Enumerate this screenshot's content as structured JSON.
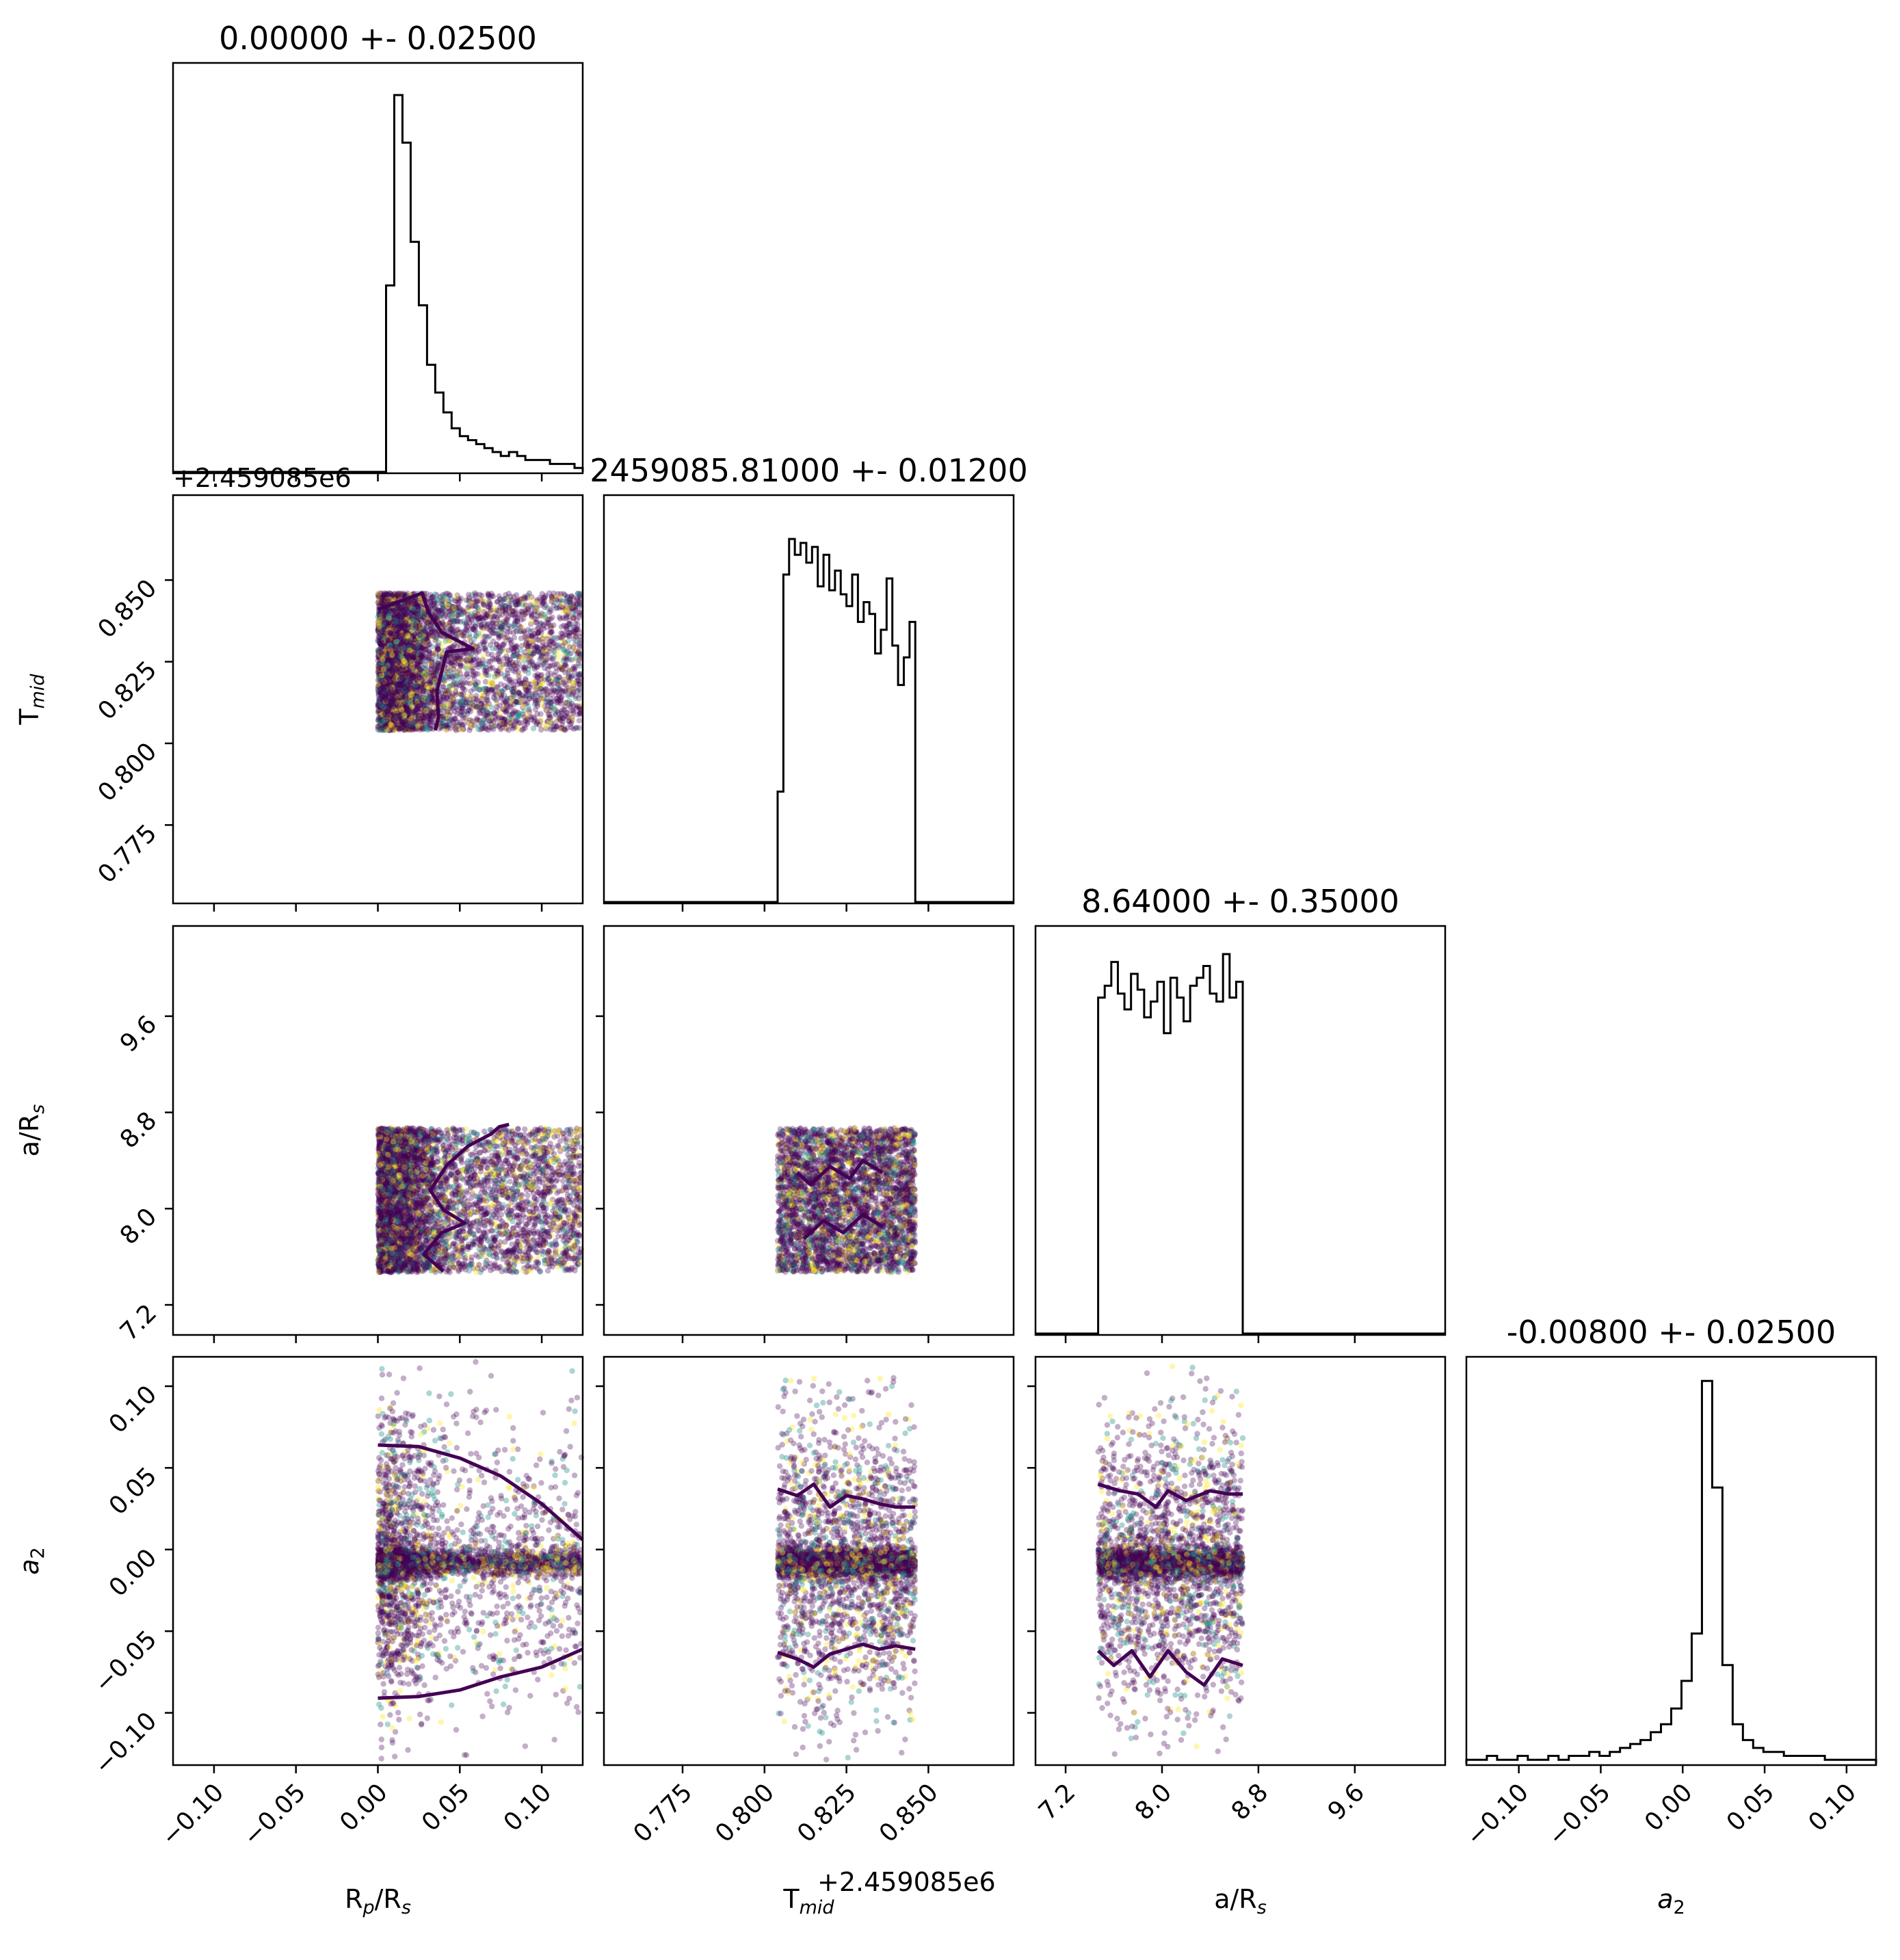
{
  "chart_data": {
    "type": "corner",
    "colors": {
      "frame": "#000000",
      "scatter_low": "#440154",
      "scatter_mid": "#21918c",
      "scatter_high": "#fde725",
      "contour": "#440154",
      "hist": "#000000"
    },
    "parameters": [
      {
        "key": "rp",
        "label_main": "R",
        "label_sub1": "p",
        "label_mid": "/R",
        "label_sub2": "s",
        "title": "0.00000 +- 0.02500",
        "range": [
          -0.125,
          0.125
        ],
        "ticks": [
          "−0.10",
          "−0.05",
          "0.00",
          "0.05",
          "0.10"
        ],
        "tick_values": [
          -0.1,
          -0.05,
          0.0,
          0.05,
          0.1
        ],
        "sample_range": [
          0.0,
          0.125
        ]
      },
      {
        "key": "tmid",
        "label_main": "T",
        "label_sub1": "mid",
        "label_mid": "",
        "label_sub2": "",
        "title": "2459085.81000 +- 0.01200",
        "range": [
          0.751,
          0.876
        ],
        "ticks": [
          "0.775",
          "0.800",
          "0.825",
          "0.850"
        ],
        "tick_values": [
          0.775,
          0.8,
          0.825,
          0.85
        ],
        "offset_label": "+2.459085e6",
        "sample_range": [
          0.804,
          0.846
        ]
      },
      {
        "key": "ars",
        "label_main": "a/R",
        "label_sub1": "",
        "label_mid": "",
        "label_sub2": "s",
        "title": "8.64000 +- 0.35000",
        "range": [
          6.95,
          10.35
        ],
        "ticks": [
          "7.2",
          "8.0",
          "8.8",
          "9.6"
        ],
        "tick_values": [
          7.2,
          8.0,
          8.8,
          9.6
        ],
        "sample_range": [
          7.47,
          8.67
        ]
      },
      {
        "key": "a2",
        "label_main": "a",
        "label_sub1": "",
        "label_mid": "",
        "label_sub2": "2",
        "title": "-0.00800 +- 0.02500",
        "range": [
          -0.132,
          0.118
        ],
        "ticks": [
          "−0.10",
          "−0.05",
          "0.00",
          "0.05",
          "0.10"
        ],
        "tick_values": [
          -0.1,
          -0.05,
          0.0,
          0.05,
          0.1
        ]
      }
    ],
    "histograms": {
      "rp": [
        0.0,
        0.47,
        0.95,
        0.83,
        0.58,
        0.42,
        0.27,
        0.2,
        0.15,
        0.11,
        0.09,
        0.08,
        0.07,
        0.06,
        0.05,
        0.04,
        0.05,
        0.04,
        0.03,
        0.03,
        0.03,
        0.02,
        0.02,
        0.02,
        0.01
      ],
      "tmid": [
        0.28,
        0.83,
        0.92,
        0.88,
        0.91,
        0.86,
        0.9,
        0.8,
        0.88,
        0.79,
        0.84,
        0.78,
        0.75,
        0.83,
        0.71,
        0.76,
        0.73,
        0.63,
        0.69,
        0.82,
        0.65,
        0.55,
        0.62,
        0.71
      ],
      "ars": [
        0.85,
        0.88,
        0.94,
        0.86,
        0.82,
        0.91,
        0.87,
        0.8,
        0.84,
        0.89,
        0.76,
        0.9,
        0.85,
        0.79,
        0.88,
        0.9,
        0.93,
        0.86,
        0.84,
        0.96,
        0.85,
        0.89
      ],
      "a2": [
        0.01,
        0.01,
        0.02,
        0.01,
        0.01,
        0.02,
        0.01,
        0.01,
        0.02,
        0.01,
        0.02,
        0.02,
        0.03,
        0.02,
        0.03,
        0.04,
        0.05,
        0.06,
        0.08,
        0.1,
        0.14,
        0.21,
        0.33,
        0.97,
        0.7,
        0.25,
        0.1,
        0.06,
        0.04,
        0.03,
        0.03,
        0.02,
        0.02,
        0.02,
        0.02,
        0.01,
        0.01,
        0.01,
        0.01,
        0.01
      ],
      "a2_range": [
        -0.132,
        0.118
      ]
    },
    "contours": {
      "tmid_rp": [
        [
          0.0,
          0.841
        ],
        [
          0.027,
          0.846
        ],
        [
          0.031,
          0.84
        ],
        [
          0.039,
          0.834
        ],
        [
          0.058,
          0.829
        ],
        [
          0.042,
          0.828
        ],
        [
          0.039,
          0.822
        ],
        [
          0.036,
          0.816
        ],
        [
          0.037,
          0.808
        ],
        [
          0.035,
          0.804
        ]
      ],
      "ars_rp": [
        [
          0.04,
          7.48
        ],
        [
          0.028,
          7.62
        ],
        [
          0.039,
          7.8
        ],
        [
          0.053,
          7.88
        ],
        [
          0.04,
          7.99
        ],
        [
          0.032,
          8.15
        ],
        [
          0.042,
          8.36
        ],
        [
          0.055,
          8.52
        ],
        [
          0.069,
          8.62
        ],
        [
          0.074,
          8.68
        ],
        [
          0.08,
          8.7
        ]
      ],
      "a2_rp_upper": [
        [
          0.0,
          0.064
        ],
        [
          0.025,
          0.063
        ],
        [
          0.05,
          0.056
        ],
        [
          0.075,
          0.045
        ],
        [
          0.1,
          0.028
        ],
        [
          0.125,
          0.006
        ]
      ],
      "a2_rp_lower": [
        [
          0.0,
          -0.091
        ],
        [
          0.025,
          -0.09
        ],
        [
          0.05,
          -0.086
        ],
        [
          0.075,
          -0.078
        ],
        [
          0.1,
          -0.072
        ],
        [
          0.125,
          -0.061
        ]
      ],
      "a2_tmid_upper": [
        [
          0.804,
          0.037
        ],
        [
          0.81,
          0.033
        ],
        [
          0.815,
          0.04
        ],
        [
          0.82,
          0.026
        ],
        [
          0.825,
          0.033
        ],
        [
          0.83,
          0.031
        ],
        [
          0.835,
          0.028
        ],
        [
          0.84,
          0.026
        ],
        [
          0.846,
          0.026
        ]
      ],
      "a2_tmid_lower": [
        [
          0.804,
          -0.063
        ],
        [
          0.81,
          -0.067
        ],
        [
          0.815,
          -0.072
        ],
        [
          0.82,
          -0.064
        ],
        [
          0.825,
          -0.061
        ],
        [
          0.83,
          -0.058
        ],
        [
          0.835,
          -0.061
        ],
        [
          0.84,
          -0.059
        ],
        [
          0.846,
          -0.061
        ]
      ],
      "a2_ars_upper": [
        [
          7.47,
          0.04
        ],
        [
          7.65,
          0.036
        ],
        [
          7.8,
          0.034
        ],
        [
          7.95,
          0.026
        ],
        [
          8.05,
          0.036
        ],
        [
          8.2,
          0.03
        ],
        [
          8.4,
          0.036
        ],
        [
          8.55,
          0.034
        ],
        [
          8.67,
          0.034
        ]
      ],
      "a2_ars_lower": [
        [
          7.47,
          -0.062
        ],
        [
          7.6,
          -0.071
        ],
        [
          7.75,
          -0.062
        ],
        [
          7.9,
          -0.078
        ],
        [
          8.05,
          -0.062
        ],
        [
          8.2,
          -0.075
        ],
        [
          8.35,
          -0.083
        ],
        [
          8.5,
          -0.067
        ],
        [
          8.67,
          -0.071
        ]
      ]
    },
    "a2_core": {
      "center": -0.008,
      "core_sigma": 0.004,
      "tail_sigma": 0.045
    },
    "grid": false
  }
}
